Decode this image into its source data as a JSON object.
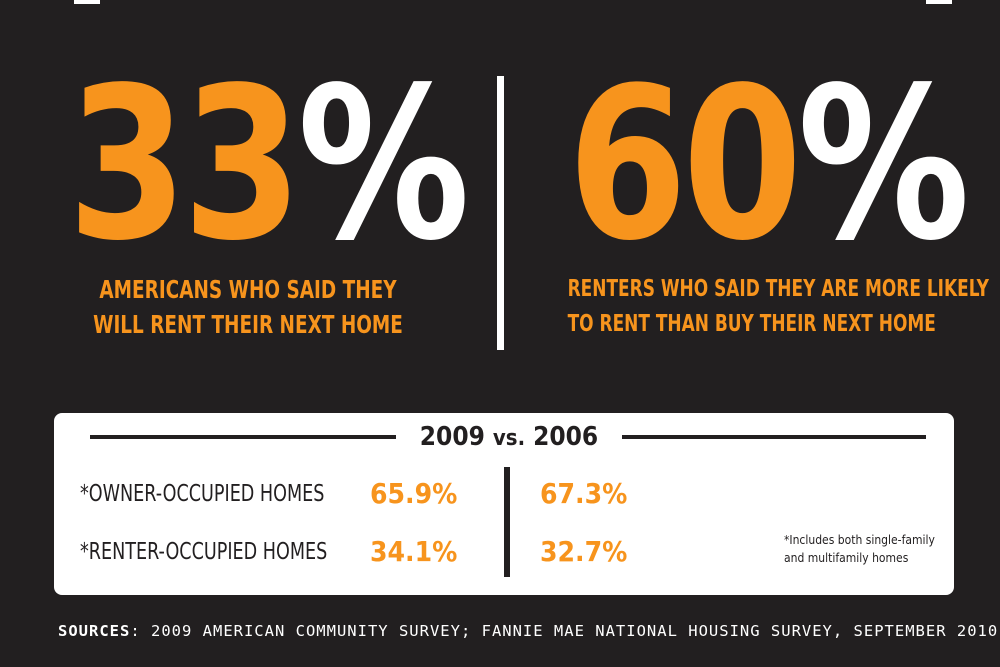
{
  "colors": {
    "background": "#221f20",
    "accent": "#f7941d",
    "panel": "#ffffff",
    "text_dark": "#221f20"
  },
  "stat_left": {
    "number": "33",
    "percent_sign": "%",
    "caption_line1": "AMERICANS WHO SAID THEY",
    "caption_line2": "WILL RENT THEIR NEXT HOME"
  },
  "stat_right": {
    "number": "60",
    "percent_sign": "%",
    "caption_line1": "RENTERS WHO SAID THEY ARE MORE LIKELY",
    "caption_line2": "TO RENT THAN BUY THEIR NEXT HOME"
  },
  "comparison": {
    "year_a": "2009",
    "vs": "vs.",
    "year_b": "2006",
    "rows": [
      {
        "label": "*OWNER-OCCUPIED HOMES",
        "value_2009": "65.9%",
        "value_2006": "67.3%"
      },
      {
        "label": "*RENTER-OCCUPIED HOMES",
        "value_2009": "34.1%",
        "value_2006": "32.7%"
      }
    ],
    "footnote_line1": "*Includes both single-family",
    "footnote_line2": "and multifamily homes"
  },
  "sources": {
    "label": "SOURCES",
    "text": ": 2009 AMERICAN COMMUNITY SURVEY; FANNIE MAE NATIONAL HOUSING SURVEY, SEPTEMBER 2010"
  }
}
